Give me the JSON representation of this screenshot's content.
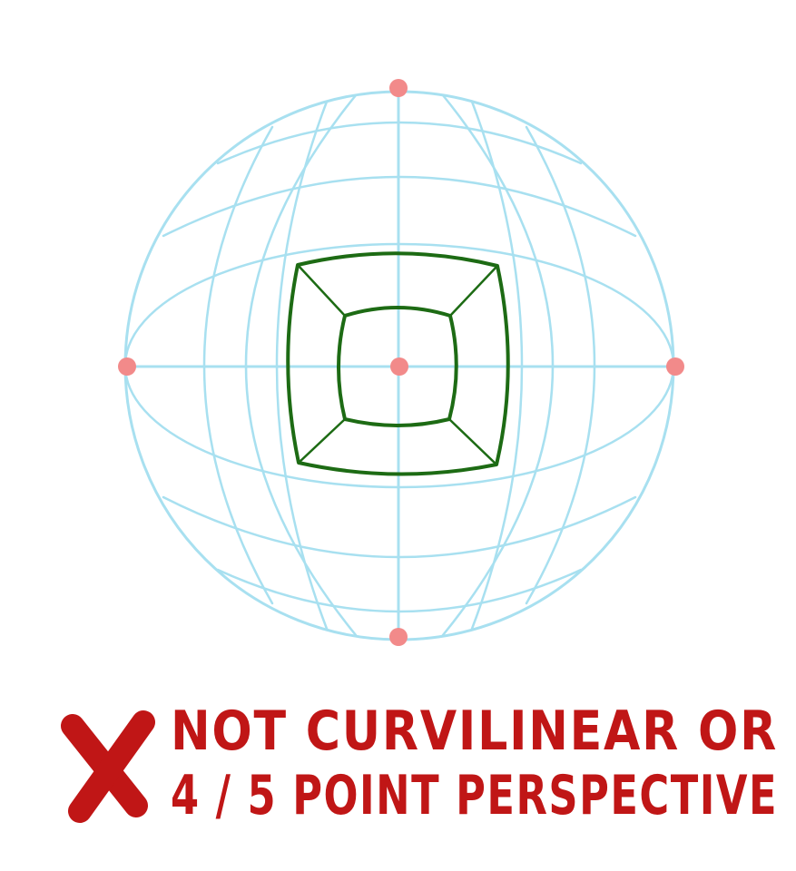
{
  "caption": {
    "line1": "NOT CURVILINEAR OR",
    "line2": "4 / 5 POINT PERSPECTIVE",
    "mark_icon": "red-x-icon"
  },
  "colors": {
    "grid": "#a8e0f0",
    "box": "#1d6b14",
    "point": "#f28a8a",
    "text": "#c01616"
  },
  "vanishing_points": [
    "top",
    "left",
    "center",
    "right",
    "bottom"
  ]
}
